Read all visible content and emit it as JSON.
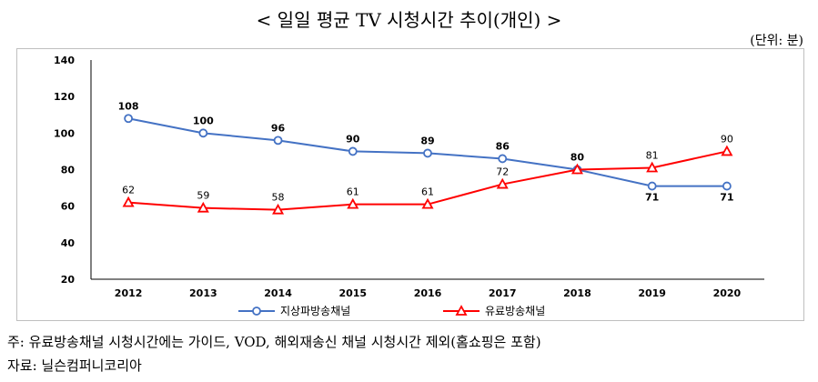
{
  "title": "< 일일 평균 TV 시청시간 추이(개인) >",
  "unit_label": "(단위: 분)",
  "notes": {
    "note1": "주: 유료방송채널 시청시간에는 가이드, VOD, 해외재송신 채널 시청시간 제외(홈쇼핑은 포함)",
    "note2": "자료: 닐슨컴퍼니코리아"
  },
  "chart_data": {
    "type": "line",
    "categories": [
      "2012",
      "2013",
      "2014",
      "2015",
      "2016",
      "2017",
      "2018",
      "2019",
      "2020"
    ],
    "ylim": [
      20,
      140
    ],
    "yticks": [
      20,
      40,
      60,
      80,
      100,
      120,
      140
    ],
    "grid": false,
    "legend_position": "bottom",
    "series": [
      {
        "name": "지상파방송채널",
        "color": "#4472C4",
        "marker": "circle",
        "values": [
          108,
          100,
          96,
          90,
          89,
          86,
          80,
          71,
          71
        ]
      },
      {
        "name": "유료방송채널",
        "color": "#FF0000",
        "marker": "triangle",
        "values": [
          62,
          59,
          58,
          61,
          61,
          72,
          80,
          81,
          90
        ]
      }
    ]
  }
}
